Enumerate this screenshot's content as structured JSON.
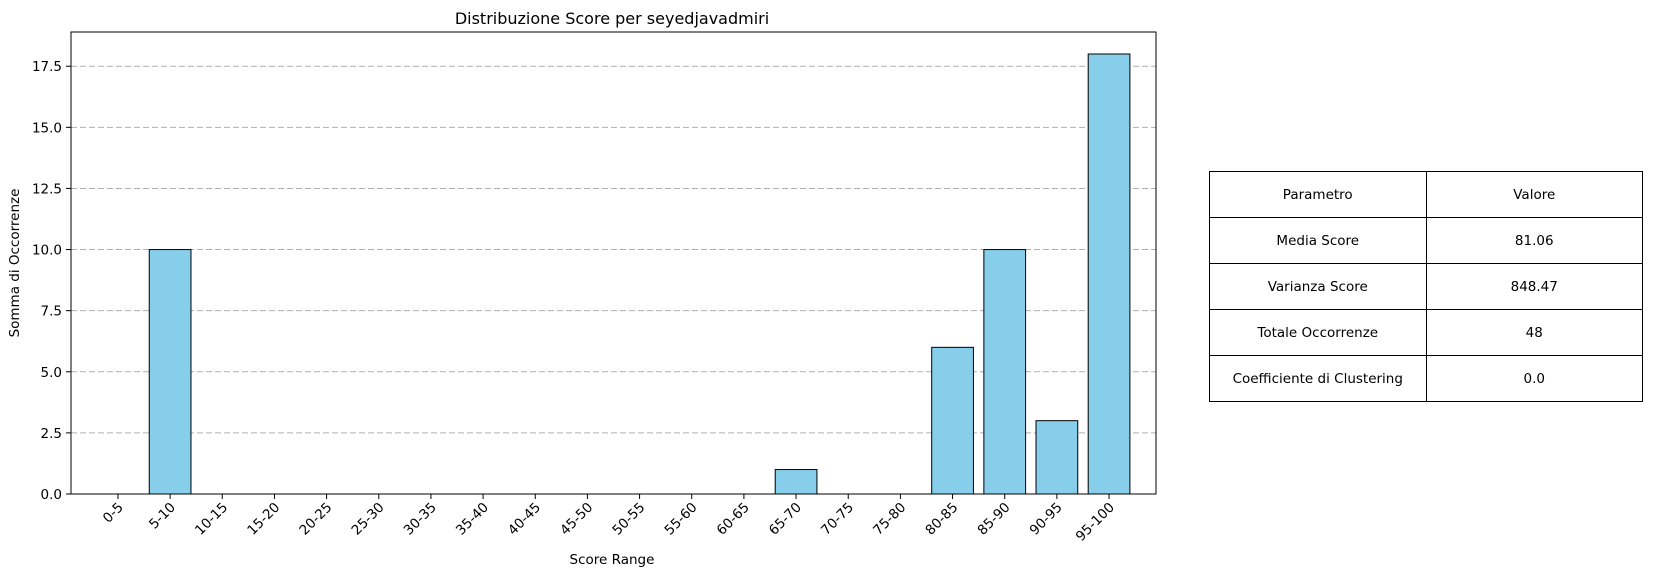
{
  "chart_data": {
    "type": "bar",
    "title": "Distribuzione Score per seyedjavadmiri",
    "xlabel": "Score Range",
    "ylabel": "Somma di Occorrenze",
    "categories": [
      "0-5",
      "5-10",
      "10-15",
      "15-20",
      "20-25",
      "25-30",
      "30-35",
      "35-40",
      "40-45",
      "45-50",
      "50-55",
      "55-60",
      "60-65",
      "65-70",
      "70-75",
      "75-80",
      "80-85",
      "85-90",
      "90-95",
      "95-100"
    ],
    "values": [
      0,
      10,
      0,
      0,
      0,
      0,
      0,
      0,
      0,
      0,
      0,
      0,
      0,
      1,
      0,
      0,
      6,
      10,
      3,
      18
    ],
    "ylim": [
      0,
      18.9
    ],
    "yticks": [
      0.0,
      2.5,
      5.0,
      7.5,
      10.0,
      12.5,
      15.0,
      17.5
    ],
    "ytick_labels": [
      "0.0",
      "2.5",
      "5.0",
      "7.5",
      "10.0",
      "12.5",
      "15.0",
      "17.5"
    ],
    "grid": "y-dashed",
    "bar_color": "#87CEEB",
    "edge_color": "#000000"
  },
  "table": {
    "header": [
      "Parametro",
      "Valore"
    ],
    "rows": [
      [
        "Media Score",
        "81.06"
      ],
      [
        "Varianza Score",
        "848.47"
      ],
      [
        "Totale Occorrenze",
        "48"
      ],
      [
        "Coefficiente di Clustering",
        "0.0"
      ]
    ]
  }
}
